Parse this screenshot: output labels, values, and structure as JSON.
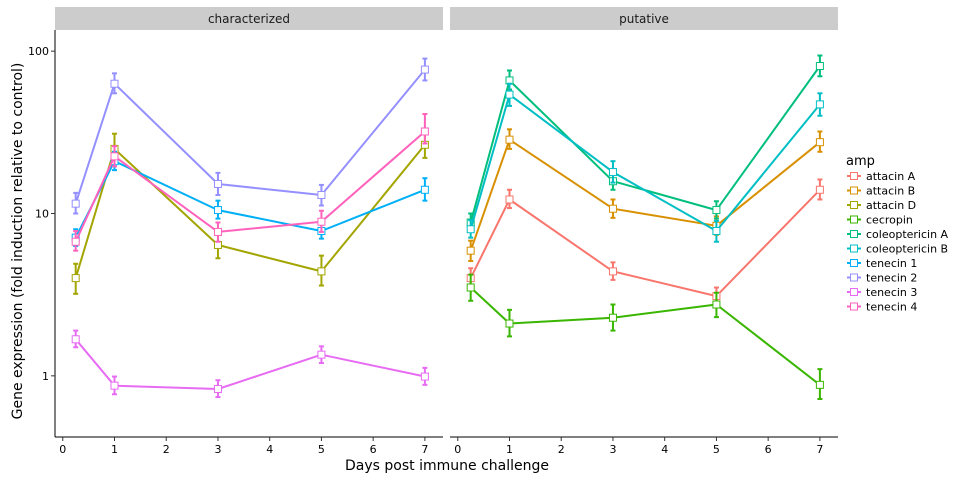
{
  "chart_data": {
    "type": "line",
    "xlabel": "Days post immune challenge",
    "ylabel": "Gene expression (fold induction relative to control)",
    "y_scale": "log10",
    "ylim": [
      0.42,
      135
    ],
    "xlim": [
      -0.15,
      7.35
    ],
    "x_ticks": [
      0,
      1,
      2,
      3,
      4,
      5,
      6,
      7
    ],
    "y_ticks": [
      1,
      10,
      100
    ],
    "y_tick_labels": [
      "1",
      "10",
      "100"
    ],
    "grid": false,
    "legend": {
      "title": "amp",
      "position": "right"
    },
    "facets": [
      {
        "label": "characterized",
        "series": [
          {
            "name": "attacin D",
            "color": "#A3A500",
            "points": [
              {
                "x": 0.25,
                "y": 4.0,
                "lo": 3.2,
                "hi": 4.9
              },
              {
                "x": 1,
                "y": 25.0,
                "lo": 20.5,
                "hi": 31.0
              },
              {
                "x": 3,
                "y": 6.4,
                "lo": 5.3,
                "hi": 7.6
              },
              {
                "x": 5,
                "y": 4.4,
                "lo": 3.6,
                "hi": 5.5
              },
              {
                "x": 7,
                "y": 26.5,
                "lo": 22.0,
                "hi": 32.0
              }
            ]
          },
          {
            "name": "tenecin 1",
            "color": "#00B0F6",
            "points": [
              {
                "x": 0.25,
                "y": 7.1,
                "lo": 6.3,
                "hi": 8.0
              },
              {
                "x": 1,
                "y": 21.0,
                "lo": 18.5,
                "hi": 24.0
              },
              {
                "x": 3,
                "y": 10.5,
                "lo": 9.3,
                "hi": 12.0
              },
              {
                "x": 5,
                "y": 7.8,
                "lo": 7.0,
                "hi": 8.8
              },
              {
                "x": 7,
                "y": 14.0,
                "lo": 12.0,
                "hi": 16.5
              }
            ]
          },
          {
            "name": "tenecin 2",
            "color": "#9590FF",
            "points": [
              {
                "x": 0.25,
                "y": 11.5,
                "lo": 10.0,
                "hi": 13.4
              },
              {
                "x": 1,
                "y": 63.0,
                "lo": 55.0,
                "hi": 73.0
              },
              {
                "x": 3,
                "y": 15.2,
                "lo": 13.0,
                "hi": 17.8
              },
              {
                "x": 5,
                "y": 13.0,
                "lo": 11.2,
                "hi": 15.0
              },
              {
                "x": 7,
                "y": 77.0,
                "lo": 66.0,
                "hi": 90.0
              }
            ]
          },
          {
            "name": "tenecin 3",
            "color": "#E76BF3",
            "points": [
              {
                "x": 0.25,
                "y": 1.68,
                "lo": 1.5,
                "hi": 1.9
              },
              {
                "x": 1,
                "y": 0.87,
                "lo": 0.77,
                "hi": 0.99
              },
              {
                "x": 3,
                "y": 0.83,
                "lo": 0.74,
                "hi": 0.94
              },
              {
                "x": 5,
                "y": 1.35,
                "lo": 1.2,
                "hi": 1.52
              },
              {
                "x": 7,
                "y": 0.99,
                "lo": 0.88,
                "hi": 1.12
              }
            ]
          },
          {
            "name": "tenecin 4",
            "color": "#FF62BC",
            "points": [
              {
                "x": 0.25,
                "y": 6.7,
                "lo": 5.9,
                "hi": 7.8
              },
              {
                "x": 1,
                "y": 22.5,
                "lo": 19.5,
                "hi": 26.0
              },
              {
                "x": 3,
                "y": 7.7,
                "lo": 6.7,
                "hi": 8.8
              },
              {
                "x": 5,
                "y": 8.9,
                "lo": 7.7,
                "hi": 10.4
              },
              {
                "x": 7,
                "y": 32.0,
                "lo": 27.0,
                "hi": 41.0
              }
            ]
          }
        ]
      },
      {
        "label": "putative",
        "series": [
          {
            "name": "attacin A",
            "color": "#F8766D",
            "points": [
              {
                "x": 0.25,
                "y": 4.0,
                "lo": 3.5,
                "hi": 4.6
              },
              {
                "x": 1,
                "y": 12.2,
                "lo": 10.8,
                "hi": 14.0
              },
              {
                "x": 3,
                "y": 4.4,
                "lo": 3.9,
                "hi": 5.0
              },
              {
                "x": 5,
                "y": 3.1,
                "lo": 2.75,
                "hi": 3.5
              },
              {
                "x": 7,
                "y": 14.0,
                "lo": 12.2,
                "hi": 16.2
              }
            ]
          },
          {
            "name": "attacin B",
            "color": "#D89000",
            "points": [
              {
                "x": 0.25,
                "y": 5.9,
                "lo": 5.1,
                "hi": 6.8
              },
              {
                "x": 1,
                "y": 28.5,
                "lo": 25.0,
                "hi": 33.0
              },
              {
                "x": 3,
                "y": 10.7,
                "lo": 9.4,
                "hi": 12.2
              },
              {
                "x": 5,
                "y": 8.4,
                "lo": 7.4,
                "hi": 9.6
              },
              {
                "x": 7,
                "y": 27.5,
                "lo": 24.0,
                "hi": 32.0
              }
            ]
          },
          {
            "name": "cecropin",
            "color": "#39B600",
            "points": [
              {
                "x": 0.25,
                "y": 3.5,
                "lo": 2.9,
                "hi": 4.2
              },
              {
                "x": 1,
                "y": 2.1,
                "lo": 1.75,
                "hi": 2.55
              },
              {
                "x": 3,
                "y": 2.28,
                "lo": 1.9,
                "hi": 2.75
              },
              {
                "x": 5,
                "y": 2.75,
                "lo": 2.3,
                "hi": 3.25
              },
              {
                "x": 7,
                "y": 0.88,
                "lo": 0.72,
                "hi": 1.1
              }
            ]
          },
          {
            "name": "coleoptericin A",
            "color": "#00BF7D",
            "points": [
              {
                "x": 0.25,
                "y": 8.8,
                "lo": 7.8,
                "hi": 10.0
              },
              {
                "x": 1,
                "y": 66.0,
                "lo": 58.0,
                "hi": 76.0
              },
              {
                "x": 3,
                "y": 15.8,
                "lo": 14.0,
                "hi": 17.8
              },
              {
                "x": 5,
                "y": 10.5,
                "lo": 9.3,
                "hi": 11.9
              },
              {
                "x": 7,
                "y": 81.0,
                "lo": 70.0,
                "hi": 94.0
              }
            ]
          },
          {
            "name": "coleoptericin B",
            "color": "#00BFC4",
            "points": [
              {
                "x": 0.25,
                "y": 8.0,
                "lo": 7.1,
                "hi": 9.1
              },
              {
                "x": 1,
                "y": 54.0,
                "lo": 46.0,
                "hi": 63.0
              },
              {
                "x": 3,
                "y": 18.0,
                "lo": 15.5,
                "hi": 21.0
              },
              {
                "x": 5,
                "y": 7.8,
                "lo": 6.7,
                "hi": 9.0
              },
              {
                "x": 7,
                "y": 47.0,
                "lo": 40.0,
                "hi": 55.0
              }
            ]
          }
        ]
      }
    ],
    "legend_entries": [
      {
        "name": "attacin A",
        "color": "#F8766D"
      },
      {
        "name": "attacin B",
        "color": "#D89000"
      },
      {
        "name": "attacin D",
        "color": "#A3A500"
      },
      {
        "name": "cecropin",
        "color": "#39B600"
      },
      {
        "name": "coleoptericin A",
        "color": "#00BF7D"
      },
      {
        "name": "coleoptericin B",
        "color": "#00BFC4"
      },
      {
        "name": "tenecin 1",
        "color": "#00B0F6"
      },
      {
        "name": "tenecin 2",
        "color": "#9590FF"
      },
      {
        "name": "tenecin 3",
        "color": "#E76BF3"
      },
      {
        "name": "tenecin 4",
        "color": "#FF62BC"
      }
    ]
  }
}
